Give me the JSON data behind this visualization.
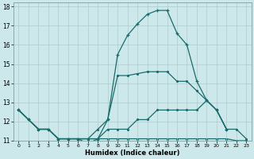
{
  "xlabel": "Humidex (Indice chaleur)",
  "xlim": [
    -0.5,
    23.5
  ],
  "ylim": [
    11,
    18.2
  ],
  "yticks": [
    11,
    12,
    13,
    14,
    15,
    16,
    17,
    18
  ],
  "xticks": [
    0,
    1,
    2,
    3,
    4,
    5,
    6,
    7,
    8,
    9,
    10,
    11,
    12,
    13,
    14,
    15,
    16,
    17,
    18,
    19,
    20,
    21,
    22,
    23
  ],
  "bg_color": "#cce8ea",
  "grid_color": "#aacccc",
  "line_color": "#1a6b6b",
  "curve1_x": [
    0,
    1,
    2,
    3,
    4,
    5,
    6,
    7,
    8,
    9,
    10,
    11,
    12,
    13,
    14,
    15,
    16,
    17,
    18,
    19,
    20,
    21
  ],
  "curve1_y": [
    12.6,
    12.1,
    11.6,
    11.6,
    11.1,
    11.1,
    11.1,
    10.85,
    11.1,
    12.1,
    15.5,
    16.5,
    17.1,
    17.6,
    17.8,
    17.8,
    16.6,
    16.0,
    14.1,
    13.1,
    12.6,
    11.6
  ],
  "curve2_x": [
    0,
    1,
    2,
    3,
    4,
    5,
    6,
    7,
    8,
    9,
    10,
    11,
    12,
    13,
    14,
    15,
    16,
    17,
    18,
    19,
    20,
    21
  ],
  "curve2_y": [
    12.6,
    12.1,
    11.6,
    11.6,
    11.1,
    11.1,
    11.1,
    11.1,
    11.6,
    12.1,
    14.4,
    14.4,
    14.5,
    14.6,
    14.6,
    14.6,
    14.1,
    14.1,
    13.6,
    13.1,
    12.6,
    11.6
  ],
  "curve3_x": [
    0,
    1,
    2,
    3,
    4,
    5,
    6,
    7,
    8,
    9,
    10,
    11,
    12,
    13,
    14,
    15,
    16,
    17,
    18,
    19,
    20,
    21,
    22,
    23
  ],
  "curve3_y": [
    12.6,
    12.1,
    11.6,
    11.6,
    11.1,
    11.1,
    11.1,
    11.1,
    11.1,
    11.6,
    11.6,
    11.6,
    12.1,
    12.1,
    12.6,
    12.6,
    12.6,
    12.6,
    12.6,
    13.1,
    12.6,
    11.6,
    11.6,
    11.1
  ],
  "curve4_x": [
    0,
    1,
    2,
    3,
    4,
    5,
    6,
    7,
    8,
    9,
    10,
    11,
    12,
    13,
    14,
    15,
    16,
    17,
    18,
    19,
    20,
    21,
    22,
    23
  ],
  "curve4_y": [
    12.6,
    12.1,
    11.6,
    11.6,
    11.1,
    11.1,
    11.1,
    11.1,
    11.1,
    11.1,
    11.1,
    11.1,
    11.1,
    11.1,
    11.1,
    11.1,
    11.1,
    11.1,
    11.1,
    11.1,
    11.1,
    11.1,
    11.0,
    11.0
  ]
}
